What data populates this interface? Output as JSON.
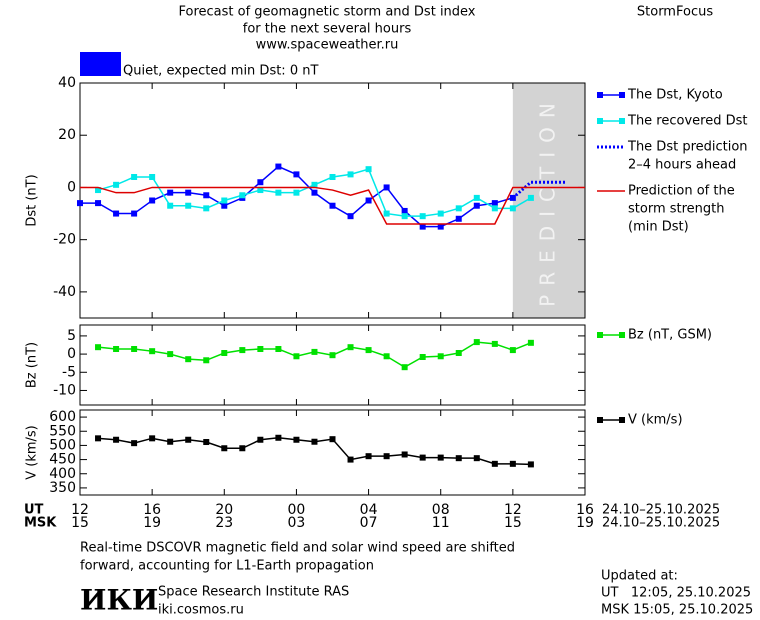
{
  "header": {
    "title_lines": [
      "Forecast of geomagnetic storm and Dst index",
      "for the next several hours",
      "www.spaceweather.ru"
    ],
    "brand": "StormFocus"
  },
  "chart_data": [
    {
      "type": "line",
      "y_label": "Dst (nT)",
      "xlim": [
        12,
        40
      ],
      "ylim": [
        -50,
        40
      ],
      "yticks": [
        40,
        20,
        0,
        -20,
        -40
      ],
      "status": {
        "label": "Quiet, expected min Dst: 0 nT",
        "color": "#0000ff"
      },
      "prediction_region": {
        "label": "PREDICTION",
        "x": [
          36,
          40
        ],
        "color": "#d3d3d3"
      },
      "series": [
        {
          "name": [
            "The Dst, Kyoto"
          ],
          "color": "#0000ff",
          "marker": "square",
          "style": "solid",
          "x": [
            12,
            13,
            14,
            15,
            16,
            17,
            18,
            19,
            20,
            21,
            22,
            23,
            24,
            25,
            26,
            27,
            28,
            29,
            30,
            31,
            32,
            33,
            34,
            35,
            36
          ],
          "values": [
            -6,
            -6,
            -10,
            -10,
            -5,
            -2,
            -2,
            -3,
            -7,
            -4,
            2,
            8,
            5,
            -2,
            -7,
            -11,
            -5,
            0,
            -9,
            -15,
            -15,
            -12,
            -7,
            -6,
            -4
          ]
        },
        {
          "name": [
            "The recovered Dst"
          ],
          "color": "#00e8e8",
          "marker": "square",
          "style": "solid",
          "x": [
            13,
            14,
            15,
            16,
            17,
            18,
            19,
            20,
            21,
            22,
            23,
            24,
            25,
            26,
            27,
            28,
            29,
            30,
            31,
            32,
            33,
            34,
            35,
            36,
            37
          ],
          "values": [
            -1,
            1,
            4,
            4,
            -7,
            -7,
            -8,
            -5,
            -3,
            -1,
            -2,
            -2,
            1,
            4,
            5,
            7,
            -10,
            -11,
            -11,
            -10,
            -8,
            -4,
            -8,
            -8,
            -4
          ]
        },
        {
          "name": [
            "The Dst prediction",
            "2–4 hours ahead"
          ],
          "color": "#0000ff",
          "marker": "none",
          "style": "dotted",
          "x": [
            36,
            37,
            38,
            39
          ],
          "values": [
            -4,
            2,
            2,
            2
          ]
        },
        {
          "name": [
            "Prediction of the",
            "storm strength",
            "(min Dst)"
          ],
          "color": "#dd0000",
          "marker": "none",
          "style": "solid",
          "x": [
            12,
            13,
            14,
            15,
            16,
            17,
            18,
            19,
            20,
            21,
            22,
            23,
            24,
            25,
            26,
            27,
            28,
            29,
            30,
            31,
            32,
            33,
            34,
            35,
            36,
            37,
            38,
            39,
            40
          ],
          "values": [
            0,
            0,
            -2,
            -2,
            0,
            0,
            0,
            0,
            0,
            0,
            0,
            0,
            0,
            0,
            -1,
            -3,
            -1,
            -14,
            -14,
            -14,
            -14,
            -14,
            -14,
            -14,
            0,
            0,
            0,
            0,
            0
          ]
        }
      ]
    },
    {
      "type": "line",
      "y_label": "Bz (nT)",
      "xlim": [
        12,
        40
      ],
      "ylim": [
        -14,
        8
      ],
      "yticks": [
        5,
        0,
        -5,
        -10
      ],
      "series": [
        {
          "name": [
            "Bz (nT, GSM)"
          ],
          "color": "#00e000",
          "marker": "square",
          "style": "solid",
          "x": [
            13,
            14,
            15,
            16,
            17,
            18,
            19,
            20,
            21,
            22,
            23,
            24,
            25,
            26,
            27,
            28,
            29,
            30,
            31,
            32,
            33,
            34,
            35,
            36,
            37
          ],
          "values": [
            1.9,
            1.4,
            1.4,
            0.8,
            0,
            -1.4,
            -1.7,
            0.3,
            1.1,
            1.4,
            1.4,
            -0.6,
            0.6,
            -0.3,
            1.9,
            1.1,
            -0.6,
            -3.6,
            -0.8,
            -0.6,
            0.3,
            3.3,
            2.8,
            1.1,
            3.1
          ]
        }
      ]
    },
    {
      "type": "line",
      "y_label": "V (km/s)",
      "xlim": [
        12,
        40
      ],
      "ylim": [
        325,
        625
      ],
      "yticks": [
        600,
        550,
        500,
        450,
        400,
        350
      ],
      "x_label": "UT",
      "x2_label": "MSK",
      "date_range": "24.10–25.10.2025",
      "xticks": [
        12,
        16,
        20,
        {
          "value": 24,
          "label": "00"
        },
        {
          "value": 28,
          "label": "04"
        },
        {
          "value": 32,
          "label": "08"
        },
        {
          "value": 36,
          "label": "12"
        },
        {
          "value": 40,
          "label": "16"
        }
      ],
      "x2ticks": [
        {
          "value": 12,
          "label": "15"
        },
        {
          "value": 16,
          "label": "19"
        },
        {
          "value": 20,
          "label": "23"
        },
        {
          "value": 24,
          "label": "03"
        },
        {
          "value": 28,
          "label": "07"
        },
        {
          "value": 32,
          "label": "11"
        },
        {
          "value": 36,
          "label": "15"
        },
        {
          "value": 40,
          "label": "19"
        }
      ],
      "series": [
        {
          "name": [
            "V (km/s)"
          ],
          "color": "#000000",
          "marker": "square",
          "style": "solid",
          "x": [
            13,
            14,
            15,
            16,
            17,
            18,
            19,
            20,
            21,
            22,
            23,
            24,
            25,
            26,
            27,
            28,
            29,
            30,
            31,
            32,
            33,
            34,
            35,
            36,
            37
          ],
          "values": [
            525,
            520,
            508,
            525,
            513,
            520,
            512,
            490,
            490,
            520,
            527,
            520,
            513,
            522,
            450,
            462,
            462,
            468,
            457,
            457,
            455,
            455,
            435,
            435,
            433
          ]
        }
      ]
    }
  ],
  "footer": {
    "note_lines": [
      "Real-time DSCOVR magnetic field and solar wind speed are shifted",
      "forward, accounting for L1-Earth propagation"
    ],
    "logo": "ИКИ",
    "institute": "Space Research Institute RAS",
    "site": "iki.cosmos.ru",
    "updated_lines": [
      "Updated at:",
      "UT   12:05, 25.10.2025",
      "MSK 15:05, 25.10.2025"
    ]
  }
}
